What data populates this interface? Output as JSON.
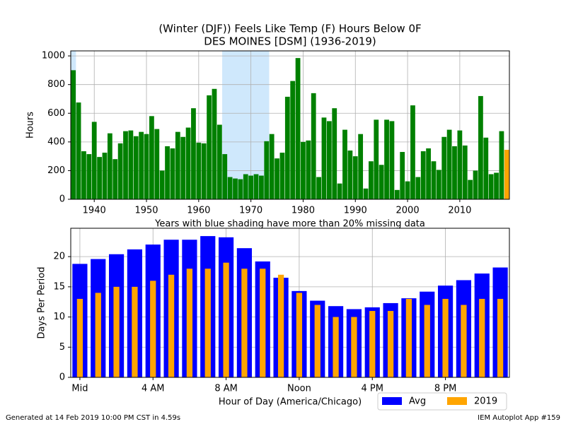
{
  "chart_data": [
    {
      "type": "bar",
      "title": [
        "(Winter (DJF)) Feels Like Temp (F) Hours Below 0F",
        "DES MOINES [DSM] (1936-2019)"
      ],
      "xlabel": "Years with blue shading have more than 20% missing data",
      "ylabel": "Hours",
      "x": [
        1936,
        1937,
        1938,
        1939,
        1940,
        1941,
        1942,
        1943,
        1944,
        1945,
        1946,
        1947,
        1948,
        1949,
        1950,
        1951,
        1952,
        1953,
        1954,
        1955,
        1956,
        1957,
        1958,
        1959,
        1960,
        1961,
        1962,
        1963,
        1964,
        1965,
        1966,
        1967,
        1968,
        1969,
        1970,
        1971,
        1972,
        1973,
        1974,
        1975,
        1976,
        1977,
        1978,
        1979,
        1980,
        1981,
        1982,
        1983,
        1984,
        1985,
        1986,
        1987,
        1988,
        1989,
        1990,
        1991,
        1992,
        1993,
        1994,
        1995,
        1996,
        1997,
        1998,
        1999,
        2000,
        2001,
        2002,
        2003,
        2004,
        2005,
        2006,
        2007,
        2008,
        2009,
        2010,
        2011,
        2012,
        2013,
        2014,
        2015,
        2016,
        2017,
        2018,
        2019
      ],
      "values": [
        900,
        675,
        335,
        315,
        540,
        295,
        325,
        460,
        280,
        390,
        475,
        480,
        440,
        470,
        455,
        580,
        490,
        200,
        370,
        355,
        470,
        435,
        500,
        635,
        395,
        390,
        725,
        770,
        520,
        315,
        155,
        145,
        140,
        175,
        165,
        175,
        165,
        405,
        455,
        285,
        325,
        715,
        825,
        985,
        400,
        410,
        740,
        155,
        570,
        545,
        635,
        110,
        485,
        340,
        300,
        455,
        75,
        265,
        555,
        240,
        555,
        545,
        65,
        330,
        125,
        655,
        155,
        335,
        355,
        265,
        205,
        435,
        485,
        370,
        480,
        375,
        135,
        200,
        720,
        430,
        175,
        185,
        475,
        345
      ],
      "color": "#008000",
      "highlight_x": 2019,
      "highlight_color": "#ffa500",
      "shaded_ranges": [
        [
          1935.5,
          1936.5
        ],
        [
          1964.5,
          1973.5
        ]
      ],
      "shade_color": "#cfe8fc",
      "xlim": [
        1935.5,
        2019.5
      ],
      "xticks": [
        1940,
        1950,
        1960,
        1970,
        1980,
        1990,
        2000,
        2010
      ],
      "ylim": [
        0,
        1035
      ],
      "yticks": [
        0,
        200,
        400,
        600,
        800,
        1000
      ],
      "grid": true
    },
    {
      "type": "bar",
      "xlabel": "Hour of Day (America/Chicago)",
      "ylabel": "Days Per Period",
      "x": [
        0,
        1,
        2,
        3,
        4,
        5,
        6,
        7,
        8,
        9,
        10,
        11,
        12,
        13,
        14,
        15,
        16,
        17,
        18,
        19,
        20,
        21,
        22,
        23
      ],
      "series": [
        {
          "name": "Avg",
          "color": "#0000ff",
          "values": [
            18.8,
            19.6,
            20.4,
            21.2,
            22.0,
            22.8,
            22.8,
            23.4,
            23.2,
            21.4,
            19.2,
            16.5,
            14.3,
            12.7,
            11.8,
            11.3,
            11.6,
            12.3,
            13.1,
            14.2,
            15.2,
            16.1,
            17.2,
            18.2
          ]
        },
        {
          "name": "2019",
          "color": "#ffa500",
          "values": [
            13,
            14,
            15,
            15,
            16,
            17,
            18,
            18,
            19,
            18,
            18,
            17,
            14,
            12,
            10,
            10,
            11,
            11,
            13,
            12,
            13,
            12,
            13,
            13
          ]
        }
      ],
      "xlim": [
        -0.5,
        23.5
      ],
      "xticks": [
        {
          "value": 0,
          "label": "Mid"
        },
        {
          "value": 4,
          "label": "4 AM"
        },
        {
          "value": 8,
          "label": "8 AM"
        },
        {
          "value": 12,
          "label": "Noon"
        },
        {
          "value": 16,
          "label": "4 PM"
        },
        {
          "value": 20,
          "label": "8 PM"
        }
      ],
      "ylim": [
        0,
        24.7
      ],
      "yticks": [
        0,
        5,
        10,
        15,
        20
      ],
      "grid": true,
      "legend": "lower right"
    }
  ],
  "footer": {
    "left": "Generated at 14 Feb 2019 10:00 PM CST in 4.59s",
    "right": "IEM Autoplot App #159"
  }
}
